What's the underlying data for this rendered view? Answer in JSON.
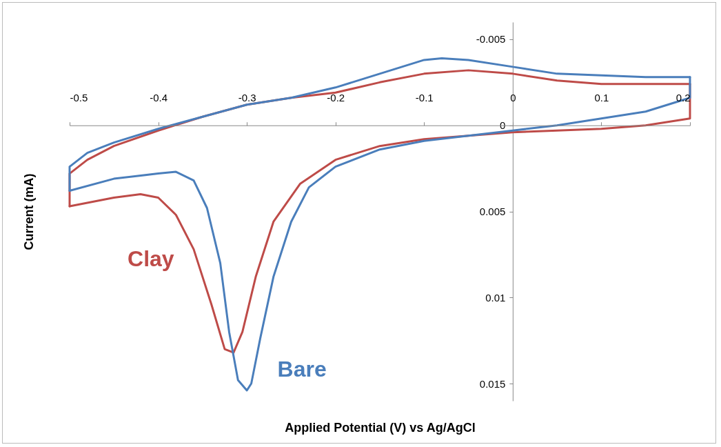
{
  "chart_data": {
    "type": "line",
    "xlabel": "Applied Potential (V) vs Ag/AgCl",
    "ylabel": "Current (mA)",
    "xlim": [
      -0.5,
      0.2
    ],
    "xticks": [
      -0.5,
      -0.4,
      -0.3,
      -0.2,
      -0.1,
      0,
      0.1,
      0.2
    ],
    "ylim": [
      0.016,
      -0.006
    ],
    "yticks": [
      -0.005,
      0,
      0.005,
      0.01,
      0.015
    ],
    "series": [
      {
        "name": "Clay",
        "color": "#be4b48",
        "x": [
          0.2,
          0.2,
          0.15,
          0.1,
          0.05,
          0,
          -0.05,
          -0.1,
          -0.15,
          -0.2,
          -0.24,
          -0.27,
          -0.29,
          -0.305,
          -0.315,
          -0.325,
          -0.34,
          -0.36,
          -0.38,
          -0.4,
          -0.42,
          -0.45,
          -0.5
        ],
        "values": [
          -0.0024,
          -0.0004,
          0,
          0.0002,
          0.0003,
          0.0004,
          0.0006,
          0.0008,
          0.0012,
          0.002,
          0.0034,
          0.0056,
          0.0088,
          0.012,
          0.0132,
          0.013,
          0.0104,
          0.0072,
          0.0052,
          0.0042,
          0.004,
          0.0042,
          0.0047
        ]
      },
      {
        "color": "#be4b48",
        "x": [
          -0.5,
          -0.5,
          -0.48,
          -0.45,
          -0.4,
          -0.35,
          -0.3,
          -0.25,
          -0.2,
          -0.15,
          -0.1,
          -0.05,
          0,
          0.05,
          0.1,
          0.15,
          0.2
        ],
        "values": [
          0.0047,
          0.0028,
          0.002,
          0.0012,
          0.0003,
          -0.0005,
          -0.0012,
          -0.0016,
          -0.0019,
          -0.0025,
          -0.003,
          -0.0032,
          -0.003,
          -0.0026,
          -0.0024,
          -0.0024,
          -0.0024
        ]
      },
      {
        "name": "Bare",
        "color": "#4a7ebb",
        "x": [
          0.2,
          0.2,
          0.15,
          0.1,
          0.05,
          0,
          -0.05,
          -0.1,
          -0.15,
          -0.2,
          -0.23,
          -0.25,
          -0.27,
          -0.285,
          -0.295,
          -0.3,
          -0.31,
          -0.32,
          -0.33,
          -0.345,
          -0.36,
          -0.38,
          -0.4,
          -0.45,
          -0.5
        ],
        "values": [
          -0.0028,
          -0.0016,
          -0.0008,
          -0.0004,
          0,
          0.0003,
          0.0006,
          0.0009,
          0.0014,
          0.0024,
          0.0036,
          0.0056,
          0.0088,
          0.0124,
          0.015,
          0.0154,
          0.0148,
          0.012,
          0.008,
          0.0048,
          0.0032,
          0.0027,
          0.0028,
          0.0031,
          0.0038
        ]
      },
      {
        "color": "#4a7ebb",
        "x": [
          -0.5,
          -0.5,
          -0.48,
          -0.45,
          -0.4,
          -0.35,
          -0.3,
          -0.25,
          -0.2,
          -0.15,
          -0.1,
          -0.08,
          -0.05,
          0,
          0.05,
          0.1,
          0.15,
          0.2
        ],
        "values": [
          0.0038,
          0.0024,
          0.0016,
          0.001,
          0.0002,
          -0.0005,
          -0.0012,
          -0.0016,
          -0.0022,
          -0.003,
          -0.0038,
          -0.0039,
          -0.0038,
          -0.0034,
          -0.003,
          -0.0029,
          -0.0028,
          -0.0028
        ]
      }
    ]
  }
}
